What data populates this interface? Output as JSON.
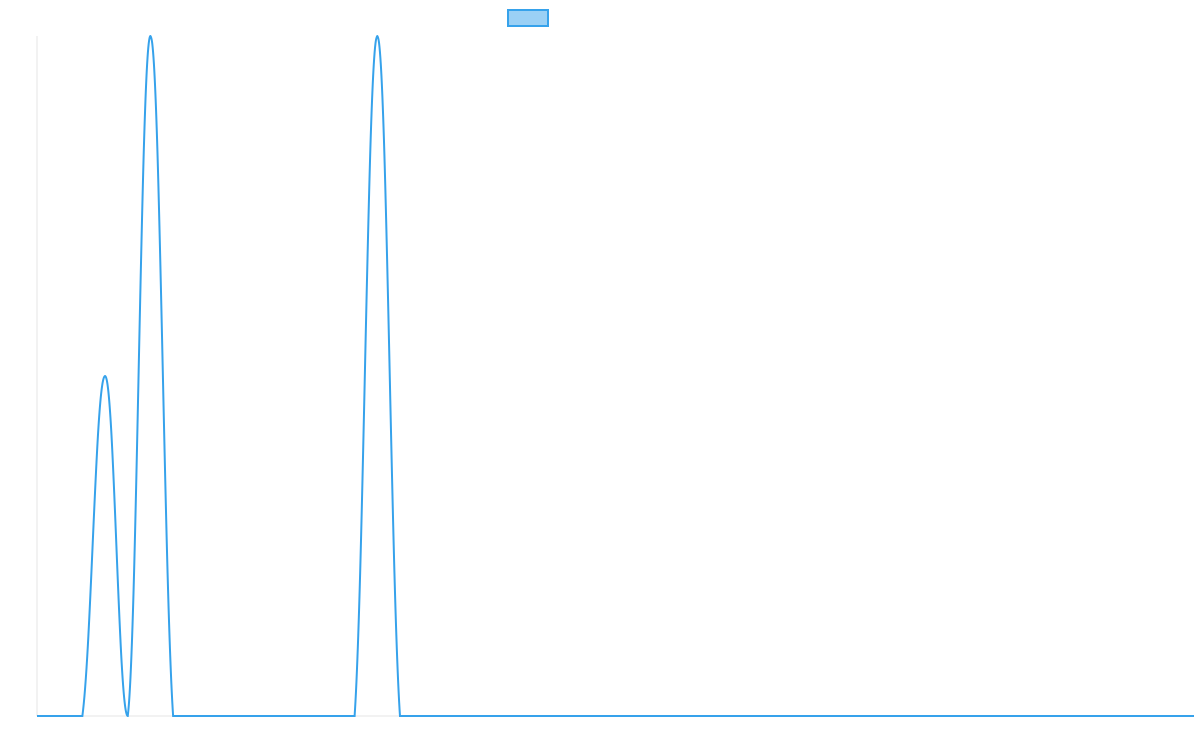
{
  "chart_data": {
    "type": "line",
    "title": "",
    "xlabel": "",
    "ylabel": "",
    "grid": false,
    "legend": {
      "placement": "top-center",
      "label": ""
    },
    "colors": {
      "line": "#36A2EB",
      "legend_fill": "#9AD0F5",
      "axis": "#E5E5E5"
    },
    "xlim": [
      0,
      51
    ],
    "ylim": [
      0,
      1
    ],
    "series": [
      {
        "x": [
          0,
          1,
          2,
          3,
          4,
          5,
          6,
          7,
          8,
          9,
          10,
          11,
          12,
          13,
          14,
          15,
          16,
          17,
          18,
          19,
          20,
          21,
          22,
          23,
          24,
          25,
          26,
          27,
          28,
          29,
          30,
          31,
          32,
          33,
          34,
          35,
          36,
          37,
          38,
          39,
          40,
          41,
          42,
          43,
          44,
          45,
          46,
          47,
          48,
          49,
          50,
          51
        ],
        "values": [
          0,
          0,
          0,
          0.5,
          0,
          1,
          0,
          0,
          0,
          0,
          0,
          0,
          0,
          0,
          0,
          1,
          0,
          0,
          0,
          0,
          0,
          0,
          0,
          0,
          0,
          0,
          0,
          0,
          0,
          0,
          0,
          0,
          0,
          0,
          0,
          0,
          0,
          0,
          0,
          0,
          0,
          0,
          0,
          0,
          0,
          0,
          0,
          0,
          0,
          0,
          0,
          0
        ]
      }
    ]
  }
}
